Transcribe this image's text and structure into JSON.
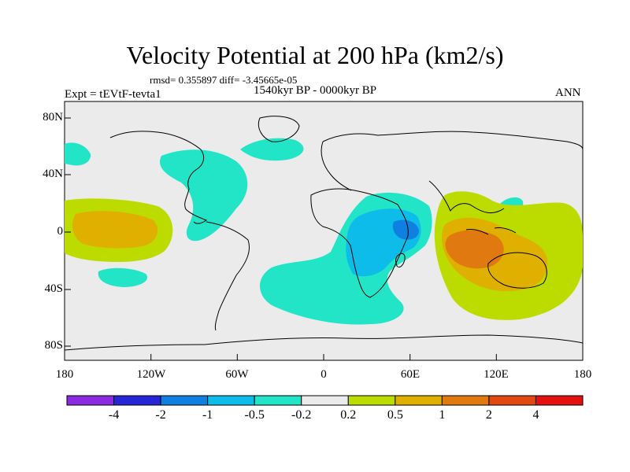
{
  "title": "Velocity Potential at 200 hPa (km2/s)",
  "stats": "rmsd= 0.355897 diff= -3.45665e-05",
  "experiment": "Expt = tEVtF-tevta1",
  "period": "1540kyr BP - 0000kyr BP",
  "season": "ANN",
  "lat_ticks": [
    "80N",
    "40N",
    "0",
    "40S",
    "80S"
  ],
  "lon_ticks": [
    "180",
    "120W",
    "60W",
    "0",
    "60E",
    "120E",
    "180"
  ],
  "colorbar": {
    "labels": [
      "-4",
      "-2",
      "-1",
      "-0.5",
      "-0.2",
      "0.2",
      "0.5",
      "1",
      "2",
      "4"
    ],
    "colors": [
      "#8a2be2",
      "#2626d6",
      "#0f7fe0",
      "#0dbce8",
      "#22e5c8",
      "#ebebeb",
      "#bcdc00",
      "#e0b000",
      "#e07a10",
      "#e04a10",
      "#e31010"
    ]
  },
  "colors": {
    "ocean_neutral": "#ebebeb",
    "coast": "#000000"
  }
}
